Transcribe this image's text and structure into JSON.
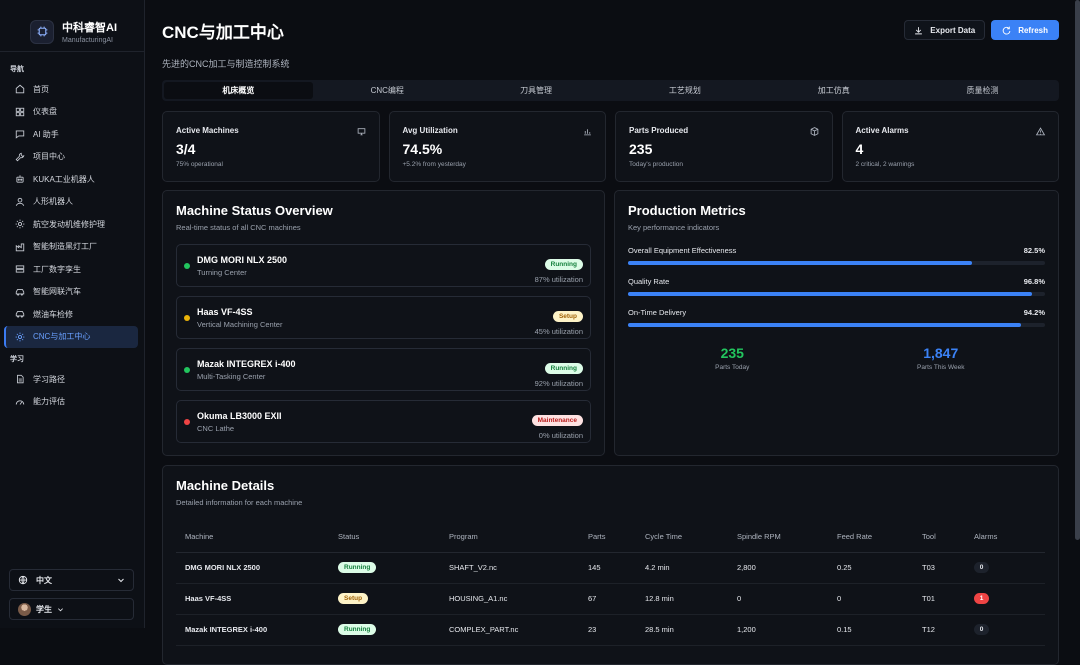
{
  "brand": {
    "name": "中科睿智AI",
    "sub": "ManufacturingAI"
  },
  "nav": {
    "section_nav": "导航",
    "items": [
      {
        "label": "首页",
        "icon": "home-icon"
      },
      {
        "label": "仪表盘",
        "icon": "dashboard-icon"
      },
      {
        "label": "AI 助手",
        "icon": "chat-icon"
      },
      {
        "label": "项目中心",
        "icon": "wrench-icon"
      },
      {
        "label": "KUKA工业机器人",
        "icon": "robot-icon"
      },
      {
        "label": "人形机器人",
        "icon": "user-icon"
      },
      {
        "label": "航空发动机维修护理",
        "icon": "gear-icon"
      },
      {
        "label": "智能制造黑灯工厂",
        "icon": "factory-icon"
      },
      {
        "label": "工厂数字孪生",
        "icon": "server-icon"
      },
      {
        "label": "智能网联汽车",
        "icon": "car-icon"
      },
      {
        "label": "燃油车检修",
        "icon": "car-icon"
      },
      {
        "label": "CNC与加工中心",
        "icon": "gear-icon"
      }
    ],
    "section_learn": "学习",
    "learn_items": [
      {
        "label": "学习路径",
        "icon": "document-icon"
      },
      {
        "label": "能力评估",
        "icon": "gauge-icon"
      }
    ]
  },
  "footer": {
    "language": "中文",
    "user": "学生"
  },
  "header": {
    "title": "CNC与加工中心",
    "subtitle": "先进的CNC加工与制造控制系统",
    "export_label": "Export Data",
    "refresh_label": "Refresh"
  },
  "tabs": [
    "机床概览",
    "CNC编程",
    "刀具管理",
    "工艺规划",
    "加工仿真",
    "质量检测"
  ],
  "stats": [
    {
      "label": "Active Machines",
      "value": "3/4",
      "sub": "75% operational",
      "icon": "monitor-icon"
    },
    {
      "label": "Avg Utilization",
      "value": "74.5%",
      "sub": "+5.2% from yesterday",
      "icon": "bar-chart-icon"
    },
    {
      "label": "Parts Produced",
      "value": "235",
      "sub": "Today's production",
      "icon": "box-icon"
    },
    {
      "label": "Active Alarms",
      "value": "4",
      "sub": "2 critical, 2 warnings",
      "icon": "warning-icon"
    }
  ],
  "status_overview": {
    "title": "Machine Status Overview",
    "subtitle": "Real-time status of all CNC machines",
    "machines": [
      {
        "name": "DMG MORI NLX 2500",
        "type": "Turning Center",
        "status": "Running",
        "utilization": "87% utilization",
        "dot": "#22c55e"
      },
      {
        "name": "Haas VF-4SS",
        "type": "Vertical Machining Center",
        "status": "Setup",
        "utilization": "45% utilization",
        "dot": "#eab308"
      },
      {
        "name": "Mazak INTEGREX i-400",
        "type": "Multi-Tasking Center",
        "status": "Running",
        "utilization": "92% utilization",
        "dot": "#22c55e"
      },
      {
        "name": "Okuma LB3000 EXII",
        "type": "CNC Lathe",
        "status": "Maintenance",
        "utilization": "0% utilization",
        "dot": "#ef4444"
      }
    ]
  },
  "metrics": {
    "title": "Production Metrics",
    "subtitle": "Key performance indicators",
    "items": [
      {
        "label": "Overall Equipment Effectiveness",
        "value": "82.5%",
        "fraction": 0.825
      },
      {
        "label": "Quality Rate",
        "value": "96.8%",
        "fraction": 0.968
      },
      {
        "label": "On-Time Delivery",
        "value": "94.2%",
        "fraction": 0.942
      }
    ],
    "parts_today": "235",
    "parts_today_label": "Parts Today",
    "parts_week": "1,847",
    "parts_week_label": "Parts This Week",
    "colors": {
      "today": "#22c55e",
      "week": "#3b82f6"
    }
  },
  "details": {
    "title": "Machine Details",
    "subtitle": "Detailed information for each machine",
    "columns": [
      "Machine",
      "Status",
      "Program",
      "Parts",
      "Cycle Time",
      "Spindle RPM",
      "Feed Rate",
      "Tool",
      "Alarms"
    ],
    "rows": [
      {
        "machine": "DMG MORI NLX 2500",
        "status": "Running",
        "program": "SHAFT_V2.nc",
        "parts": "145",
        "cycle": "4.2 min",
        "rpm": "2,800",
        "feed": "0.25",
        "tool": "T03",
        "alarms": "0"
      },
      {
        "machine": "Haas VF-4SS",
        "status": "Setup",
        "program": "HOUSING_A1.nc",
        "parts": "67",
        "cycle": "12.8 min",
        "rpm": "0",
        "feed": "0",
        "tool": "T01",
        "alarms": "1"
      },
      {
        "machine": "Mazak INTEGREX i-400",
        "status": "Running",
        "program": "COMPLEX_PART.nc",
        "parts": "23",
        "cycle": "28.5 min",
        "rpm": "1,200",
        "feed": "0.15",
        "tool": "T12",
        "alarms": "0"
      }
    ]
  }
}
